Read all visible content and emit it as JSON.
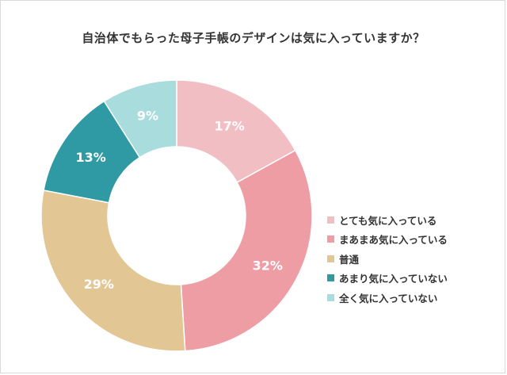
{
  "chart_data": {
    "type": "pie",
    "title": "自治体でもらった母子手帳のデザインは気に入っていますか？",
    "categories": [
      "とても気に入っている",
      "まあまあ気に入っている",
      "普通",
      "あまり気に入っていない",
      "全く気に入っていない"
    ],
    "values": [
      17,
      32,
      29,
      13,
      9
    ],
    "value_labels": [
      "17%",
      "32%",
      "29%",
      "13%",
      "9%"
    ],
    "colors": [
      "#f1bec4",
      "#ee9da5",
      "#e2c795",
      "#2f9aa3",
      "#a9dcdd"
    ],
    "donut": true,
    "legend_position": "right"
  }
}
